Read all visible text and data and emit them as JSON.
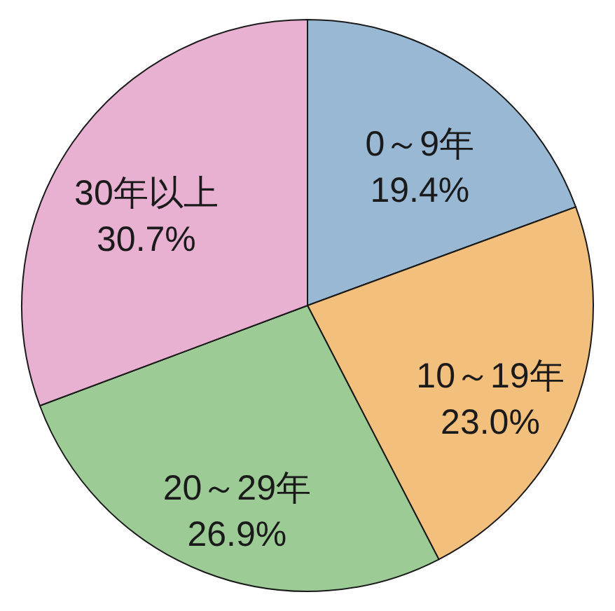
{
  "chart_data": {
    "type": "pie",
    "categories": [
      "0～9年",
      "10～19年",
      "20～29年",
      "30年以上"
    ],
    "values": [
      19.4,
      23.0,
      26.9,
      30.7
    ],
    "colors": [
      "#98b8d4",
      "#f3bf7c",
      "#9ccb96",
      "#e8b1d2"
    ],
    "value_labels": [
      "19.4%",
      "23.0%",
      "26.9%",
      "30.7%"
    ]
  }
}
